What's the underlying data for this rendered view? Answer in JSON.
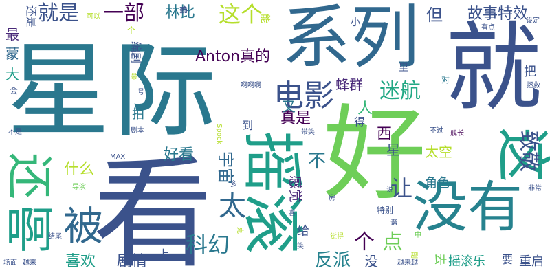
{
  "palette": {
    "teal": "#2a788e",
    "blue": "#31688e",
    "indigo": "#3b528b",
    "purple": "#440154",
    "deep_purple": "#482878",
    "green": "#35b779",
    "lime": "#6ece58",
    "yellow_green": "#b5de2b",
    "teal_green": "#1f9e89",
    "sea": "#22a884",
    "cyan": "#26828e"
  },
  "words": [
    "星",
    "际",
    "系列",
    "就",
    "好",
    "看",
    "摇滚",
    "这",
    "没有",
    "还",
    "啊",
    "被",
    "电影",
    "迷航",
    "就是",
    "一部",
    "林比",
    "这个",
    "故事特效",
    "但",
    "Anton真的",
    "蜂群",
    "科幻",
    "喜欢",
    "剧情",
    "反派",
    "太",
    "宇宙",
    "什么",
    "好看",
    "致敬",
    "让",
    "点",
    "个",
    "没",
    "感觉",
    "不",
    "真是",
    "人",
    "西",
    "星",
    "太空",
    "角色",
    "摇滚乐",
    "重启",
    "去",
    "要",
    "最",
    "蒙",
    "大",
    "还是",
    "编剧",
    "拍",
    "会",
    "对",
    "把",
    "又",
    "到",
    "得",
    "给",
    "上",
    "里",
    "小",
    "能",
    "可以",
    "有点",
    "设定",
    "舰长",
    "不过",
    "非常",
    "拯救",
    "啊啊啊",
    "号",
    "剧本",
    "不是",
    "IMAX",
    "导演",
    "多",
    "结尾",
    "场面",
    "越来",
    "越来越",
    "克",
    "觉得",
    "说",
    "谐",
    "带笑",
    "房",
    "特别",
    "Spock",
    "中",
    "副",
    "笑",
    "喜",
    "偏",
    "个",
    "带"
  ]
}
